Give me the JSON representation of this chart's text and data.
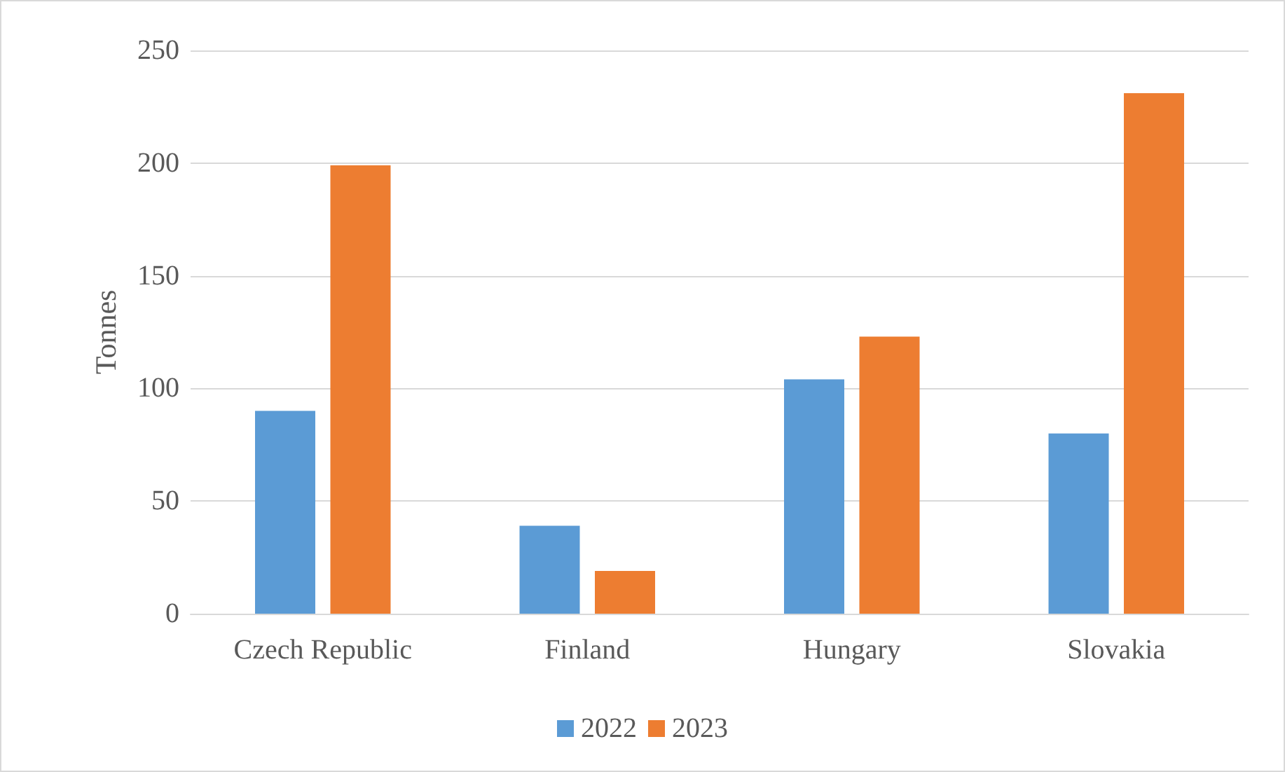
{
  "chart_data": {
    "type": "bar",
    "ylabel": "Tonnes",
    "categories": [
      "Czech Republic",
      "Finland",
      "Hungary",
      "Slovakia"
    ],
    "series": [
      {
        "name": "2022",
        "color": "#5b9bd5",
        "values": [
          90,
          39,
          104,
          80
        ]
      },
      {
        "name": "2023",
        "color": "#ed7d31",
        "values": [
          199,
          19,
          123,
          231
        ]
      }
    ],
    "ylim": [
      0,
      250
    ],
    "yticks": [
      0,
      50,
      100,
      150,
      200,
      250
    ],
    "grid": "y",
    "legend": "bottom"
  }
}
